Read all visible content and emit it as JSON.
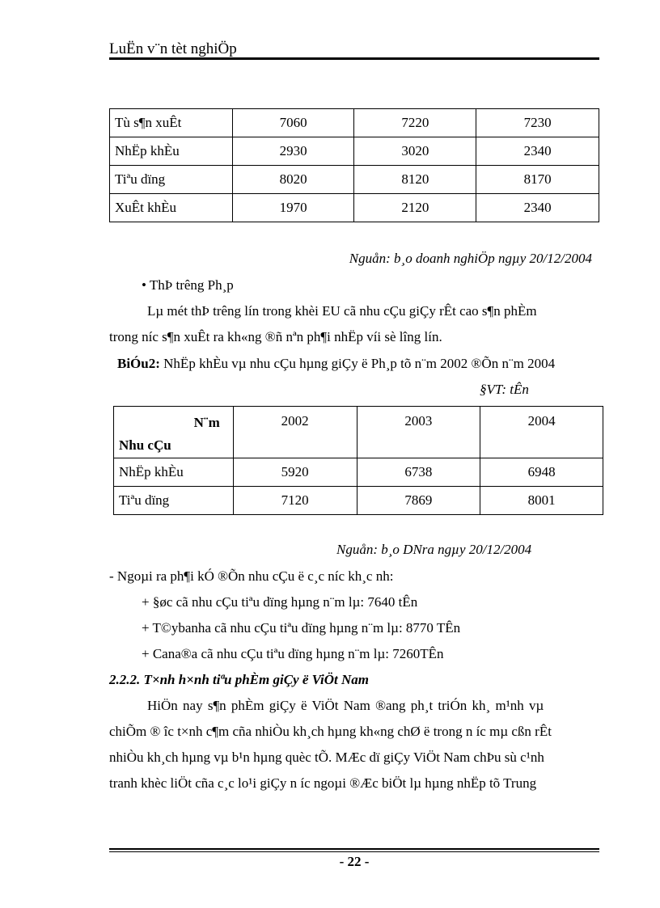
{
  "header": {
    "title": "LuËn v¨n tèt nghiÖp"
  },
  "table1": {
    "rows": [
      {
        "label": "Tù s¶n xuÊt",
        "values": [
          "7060",
          "7220",
          "7230"
        ]
      },
      {
        "label": "NhËp khÈu",
        "values": [
          "2930",
          "3020",
          "2340"
        ]
      },
      {
        "label": "Tiªu dïng",
        "values": [
          "8020",
          "8120",
          "8170"
        ]
      },
      {
        "label": "XuÊt khÈu",
        "values": [
          "1970",
          "2120",
          "2340"
        ]
      }
    ]
  },
  "source1": "Nguån: b¸o doanh nghiÖp ngµy 20/12/2004",
  "bullet": "• ThÞ tr­êng  Ph¸p",
  "para1_line1": "Lµ mét thÞ tr­êng  lín trong khèi EU cã nhu cÇu giÇy rÊt cao s¶n phÈm",
  "para1_line2": "trong n­íc  s¶n xuÊt ra kh«ng ®ñ nªn ph¶i nhËp víi sè l­îng  lín.",
  "caption": {
    "label": "BiÓu2:",
    "text": " NhËp khÈu vµ nhu cÇu hµng giÇy ë Ph¸p tõ n¨m 2002 ®Õn n¨m 2004"
  },
  "unit": "§VT: tÊn",
  "table2": {
    "header_top": "N¨m",
    "header_bottom": "Nhu cÇu",
    "years": [
      "2002",
      "2003",
      "2004"
    ],
    "rows": [
      {
        "label": "NhËp khÈu",
        "values": [
          "5920",
          "6738",
          "6948"
        ]
      },
      {
        "label": "Tiªu dïng",
        "values": [
          "7120",
          "7869",
          "8001"
        ]
      }
    ]
  },
  "source2": "Nguån: b¸o DNra ngµy 20/12/2004",
  "list_intro": "- Ngoµi ra ph¶i kÓ ®Õn nhu cÇu ë c¸c n­íc  kh¸c nh:",
  "list": [
    "+ §øc cã nhu  cÇu tiªu  dïng hµng n¨m lµ: 7640  tÊn",
    "+ T©ybanha cã nhu  cÇu tiªu  dïng hµng n¨m lµ: 8770  TÊn",
    "+ Cana®a cã nhu  cÇu tiªu  dïng hµng n¨m lµ: 7260TÊn"
  ],
  "section_heading": "2.2.2. T×nh h×nh tiªu phÈm giÇy ë ViÖt Nam",
  "para2": [
    "HiÖn nay s¶n phÈm giÇy ë ViÖt Nam ®ang ph¸t triÓn kh¸  m¹nh vµ",
    "chiÕm ® ­îc t×nh c¶m cña nhiÒu kh¸ch hµng kh«ng chØ ë trong n ­íc mµ cßn rÊt",
    "nhiÒu kh¸ch hµng vµ b¹n hµng quèc tÕ. MÆc dï giÇy ViÖt Nam chÞu sù c¹nh",
    "tranh khèc liÖt cña c¸c lo¹i giÇy n ­íc ngoµi ®Æc biÖt lµ hµng nhËp tõ Trung"
  ],
  "page_number": "- 22 -"
}
